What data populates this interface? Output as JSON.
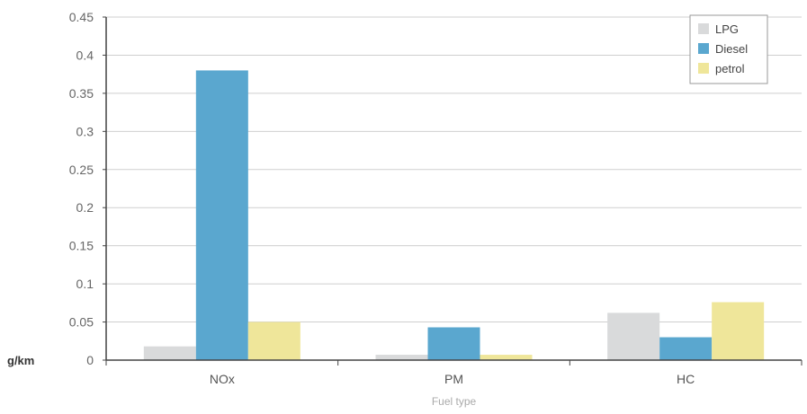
{
  "chart_data": {
    "type": "bar",
    "title": "",
    "xlabel": "Fuel type",
    "ylabel": "g/km",
    "categories": [
      "NOx",
      "PM",
      "HC"
    ],
    "series": [
      {
        "name": "LPG",
        "color": "#d9dadb",
        "values": [
          0.018,
          0.007,
          0.062
        ]
      },
      {
        "name": "Diesel",
        "color": "#5aa7cf",
        "values": [
          0.38,
          0.043,
          0.03
        ]
      },
      {
        "name": "petrol",
        "color": "#efe69a",
        "values": [
          0.05,
          0.007,
          0.076
        ]
      }
    ],
    "ylim": [
      0,
      0.45
    ],
    "yticks": [
      "0",
      "0.05",
      "0.1",
      "0.15",
      "0.2",
      "0.25",
      "0.3",
      "0.35",
      "0.4",
      "0.45"
    ],
    "grid": true,
    "legend_position": "top-right"
  }
}
